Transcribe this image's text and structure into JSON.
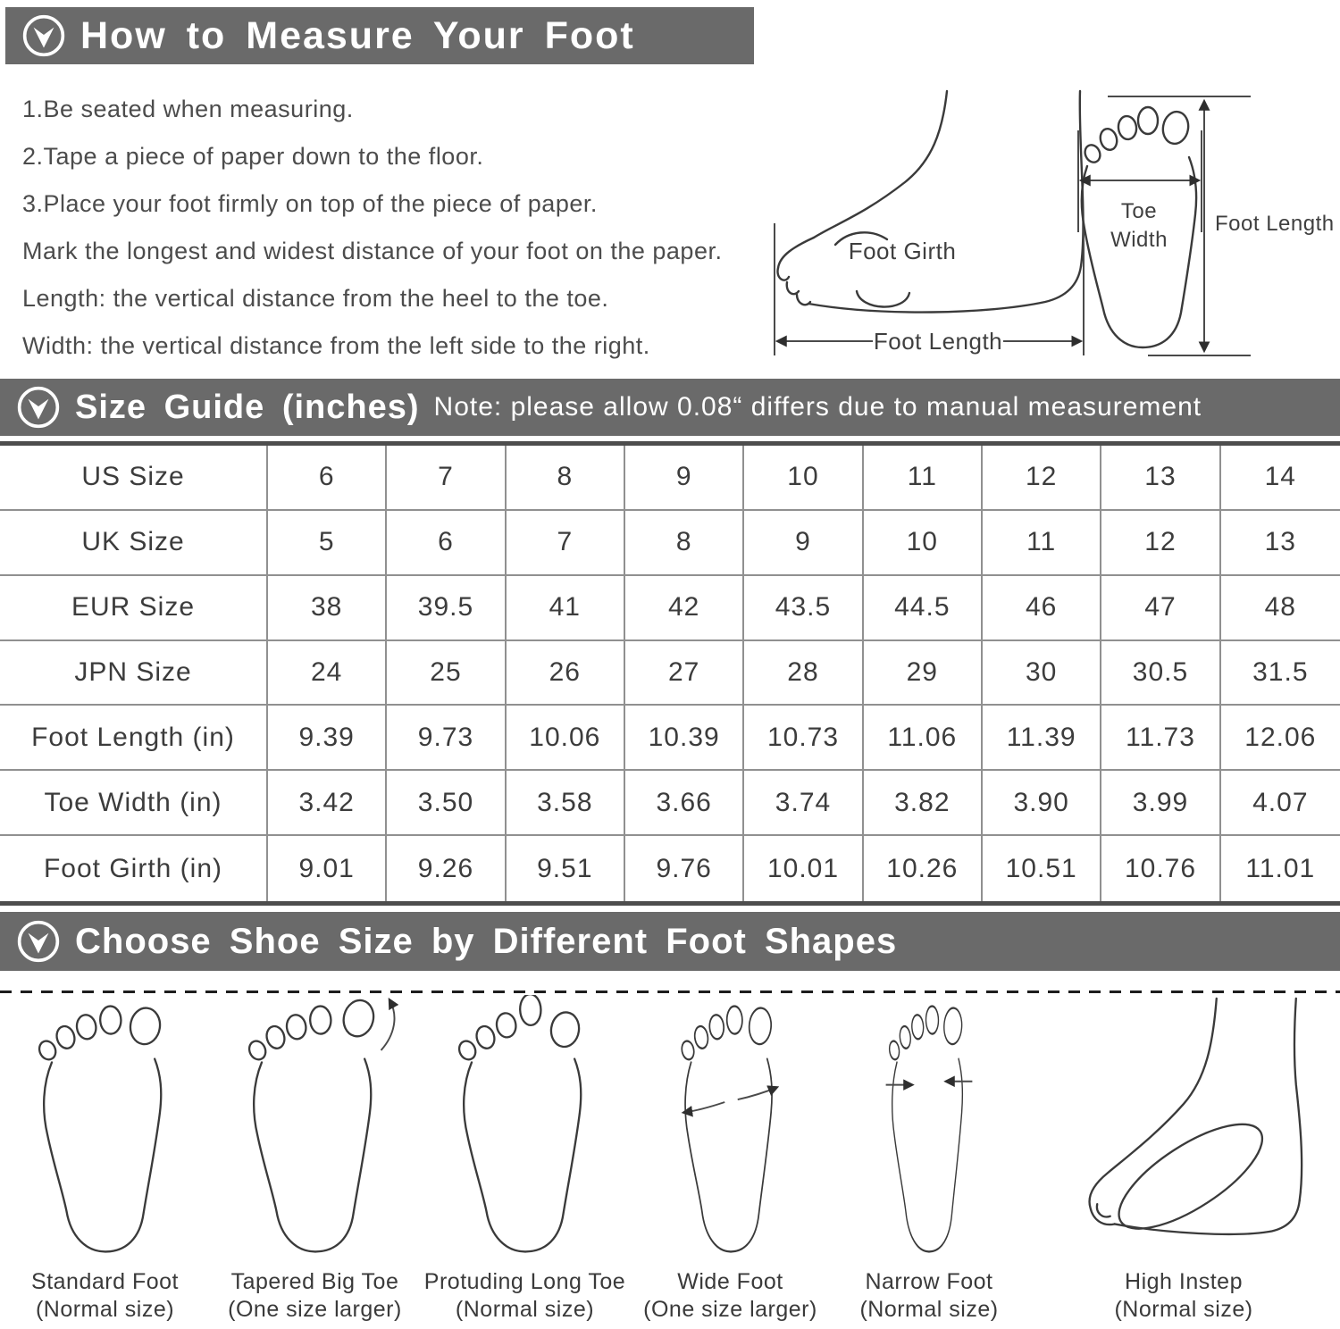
{
  "colors": {
    "header_bar": "#6a6a6a",
    "header_text": "#ffffff",
    "body_text": "#4c4c4c",
    "table_text": "#3c3c3c",
    "table_border": "#909090",
    "table_border_thick": "#4d4d4d",
    "drawing_stroke": "#3a3a3a"
  },
  "section1": {
    "icon": "circle-arrow-down-icon",
    "title": "How to Measure Your Foot",
    "instructions": [
      "1.Be seated when measuring.",
      "2.Tape a piece of paper down to the floor.",
      "3.Place your foot firmly on top of the piece of paper.",
      "Mark the longest and widest distance of your foot on the paper.",
      "Length: the vertical distance from the heel to the toe.",
      "Width: the vertical distance from the left side to the right."
    ],
    "diagram_labels": {
      "foot_girth": "Foot Girth",
      "foot_length_side": "Foot Length",
      "toe_width_line1": "Toe",
      "toe_width_line2": "Width",
      "foot_length_top": "Foot Length"
    }
  },
  "section2": {
    "icon": "circle-arrow-down-icon",
    "title": "Size Guide (inches)",
    "note": "Note: please allow 0.08“ differs due to manual measurement",
    "table": {
      "rows": [
        {
          "label": "US Size",
          "values": [
            "6",
            "7",
            "8",
            "9",
            "10",
            "11",
            "12",
            "13",
            "14"
          ]
        },
        {
          "label": "UK Size",
          "values": [
            "5",
            "6",
            "7",
            "8",
            "9",
            "10",
            "11",
            "12",
            "13"
          ]
        },
        {
          "label": "EUR Size",
          "values": [
            "38",
            "39.5",
            "41",
            "42",
            "43.5",
            "44.5",
            "46",
            "47",
            "48"
          ]
        },
        {
          "label": "JPN Size",
          "values": [
            "24",
            "25",
            "26",
            "27",
            "28",
            "29",
            "30",
            "30.5",
            "31.5"
          ]
        },
        {
          "label": "Foot Length (in)",
          "values": [
            "9.39",
            "9.73",
            "10.06",
            "10.39",
            "10.73",
            "11.06",
            "11.39",
            "11.73",
            "12.06"
          ]
        },
        {
          "label": "Toe Width (in)",
          "values": [
            "3.42",
            "3.50",
            "3.58",
            "3.66",
            "3.74",
            "3.82",
            "3.90",
            "3.99",
            "4.07"
          ]
        },
        {
          "label": "Foot Girth (in)",
          "values": [
            "9.01",
            "9.26",
            "9.51",
            "9.76",
            "10.01",
            "10.26",
            "10.51",
            "10.76",
            "11.01"
          ]
        }
      ]
    }
  },
  "section3": {
    "icon": "circle-arrow-down-icon",
    "title": "Choose Shoe Size by Different Foot Shapes",
    "foot_shapes": [
      {
        "name": "Standard Foot",
        "sizing": "(Normal size)"
      },
      {
        "name": "Tapered Big Toe",
        "sizing": "(One size larger)"
      },
      {
        "name": "Protuding Long Toe",
        "sizing": "(Normal size)"
      },
      {
        "name": "Wide Foot",
        "sizing": "(One size larger)"
      },
      {
        "name": "Narrow Foot",
        "sizing": "(Normal size)"
      },
      {
        "name": "High Instep",
        "sizing": "(Normal size)"
      }
    ]
  }
}
